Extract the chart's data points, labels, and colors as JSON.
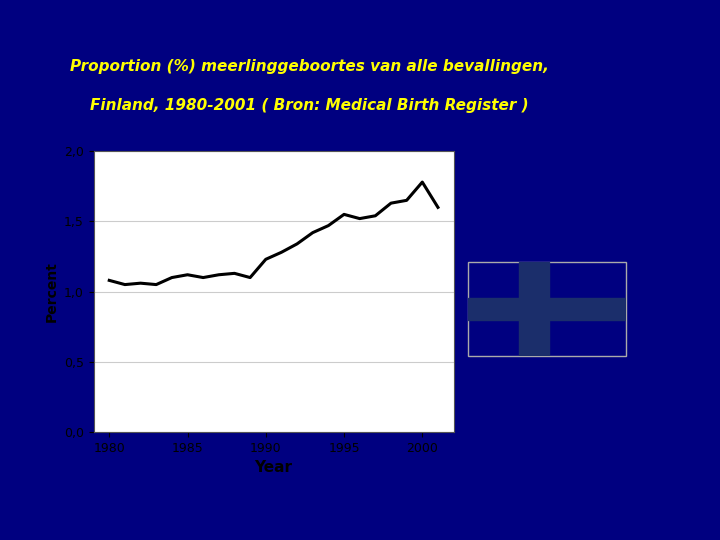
{
  "title_line1": "Proportion (%) meerlinggeboortes van alle bevallingen,",
  "title_line2": "Finland, 1980-2001 ( Bron: Medical Birth Register )",
  "title_color": "#FFFF00",
  "title_bg_color": "#00008B",
  "title_border_color": "#CCCCCC",
  "bg_color": "#000080",
  "plot_bg_color": "#FFFFFF",
  "white_panel_color": "#FFFFFF",
  "xlabel": "Year",
  "ylabel": "Percent",
  "ytick_labels": [
    "0,0",
    "0,5",
    "1,0",
    "1,5",
    "2,0"
  ],
  "ytick_values": [
    0.0,
    0.5,
    1.0,
    1.5,
    2.0
  ],
  "xtick_values": [
    1980,
    1985,
    1990,
    1995,
    2000
  ],
  "ylim": [
    0.0,
    2.0
  ],
  "xlim": [
    1979.0,
    2002.0
  ],
  "years": [
    1980,
    1981,
    1982,
    1983,
    1984,
    1985,
    1986,
    1987,
    1988,
    1989,
    1990,
    1991,
    1992,
    1993,
    1994,
    1995,
    1996,
    1997,
    1998,
    1999,
    2000,
    2001
  ],
  "values": [
    1.08,
    1.05,
    1.06,
    1.05,
    1.1,
    1.12,
    1.1,
    1.12,
    1.13,
    1.1,
    1.23,
    1.28,
    1.34,
    1.42,
    1.47,
    1.55,
    1.52,
    1.54,
    1.63,
    1.65,
    1.78,
    1.6
  ],
  "line_color": "#000000",
  "line_width": 2.2,
  "flag_cross_color": "#1B2E6B",
  "flag_white": "#FFFFFF",
  "flag_border": "#AAAAAA"
}
